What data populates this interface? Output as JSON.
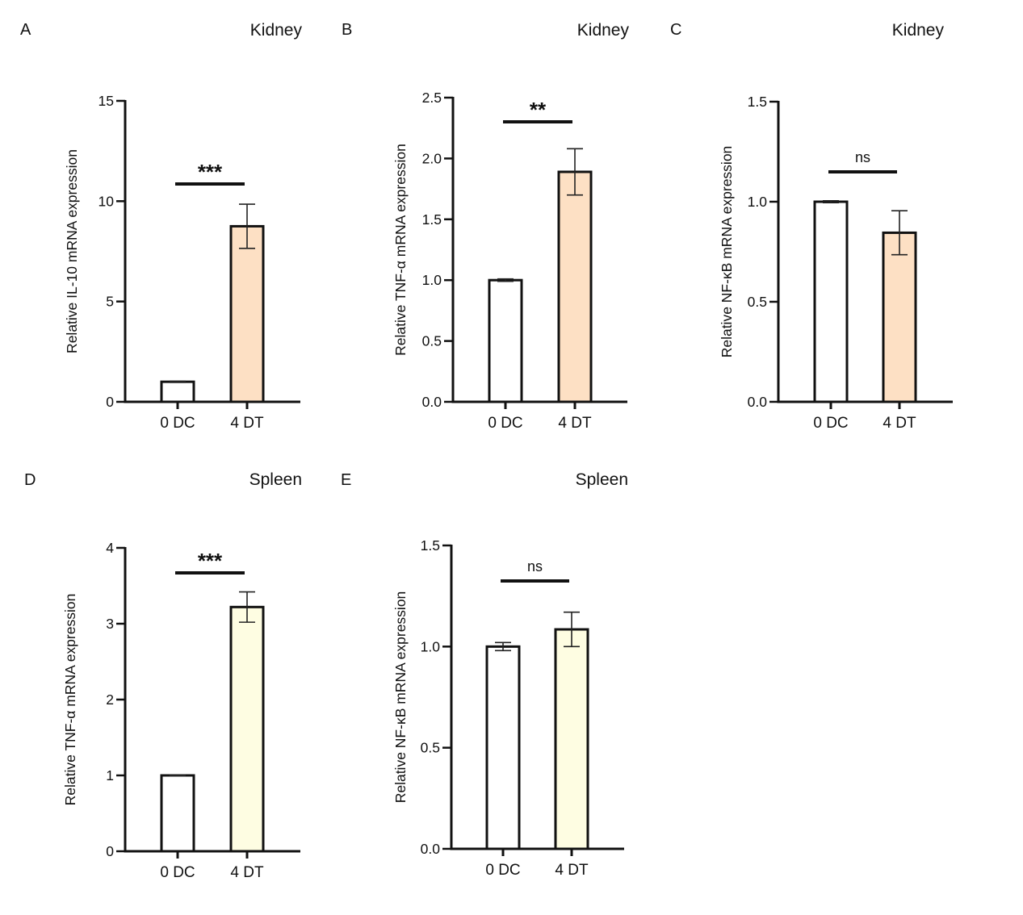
{
  "chart_data": [
    {
      "type": "bar",
      "panel": "A",
      "title": "Kidney",
      "ylabel": "Relative IL-10 mRNA expression",
      "categories": [
        "0 DC",
        "4 DT"
      ],
      "values": [
        1.0,
        8.75
      ],
      "errors": [
        0.03,
        1.1
      ],
      "ylim": [
        0,
        15
      ],
      "yticks": [
        0,
        5,
        10,
        15
      ],
      "significance": "***",
      "colors": [
        "#ffffff",
        "#fde0c4"
      ]
    },
    {
      "type": "bar",
      "panel": "B",
      "title": "Kidney",
      "ylabel": "Relative TNF-α mRNA expression",
      "categories": [
        "0 DC",
        "4 DT"
      ],
      "values": [
        1.0,
        1.89
      ],
      "errors": [
        0.01,
        0.19
      ],
      "ylim": [
        0,
        2.5
      ],
      "yticks": [
        "0.0",
        "0.5",
        "1.0",
        "1.5",
        "2.0",
        "2.5"
      ],
      "significance": "**",
      "colors": [
        "#ffffff",
        "#fde0c4"
      ]
    },
    {
      "type": "bar",
      "panel": "C",
      "title": "Kidney",
      "ylabel": "Relative NF-κB mRNA expression",
      "categories": [
        "0 DC",
        "4 DT"
      ],
      "values": [
        1.0,
        0.845
      ],
      "errors": [
        0.005,
        0.11
      ],
      "ylim": [
        0,
        1.5
      ],
      "yticks": [
        "0.0",
        "0.5",
        "1.0",
        "1.5"
      ],
      "significance": "ns",
      "colors": [
        "#ffffff",
        "#fde0c4"
      ]
    },
    {
      "type": "bar",
      "panel": "D",
      "title": "Spleen",
      "ylabel": "Relative TNF-α mRNA expression",
      "categories": [
        "0 DC",
        "4 DT"
      ],
      "values": [
        1.0,
        3.22
      ],
      "errors": [
        0.005,
        0.2
      ],
      "ylim": [
        0,
        4
      ],
      "yticks": [
        0,
        1,
        2,
        3,
        4
      ],
      "significance": "***",
      "colors": [
        "#ffffff",
        "#fefde2"
      ]
    },
    {
      "type": "bar",
      "panel": "E",
      "title": "Spleen",
      "ylabel": "Relative NF-κB mRNA expression",
      "categories": [
        "0 DC",
        "4 DT"
      ],
      "values": [
        1.0,
        1.085
      ],
      "errors": [
        0.02,
        0.085
      ],
      "ylim": [
        0,
        1.5
      ],
      "yticks": [
        "0.0",
        "0.5",
        "1.0",
        "1.5"
      ],
      "significance": "ns",
      "colors": [
        "#ffffff",
        "#fefde2"
      ]
    }
  ]
}
